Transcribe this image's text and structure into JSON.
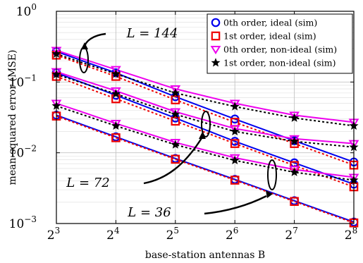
{
  "chart_data": {
    "type": "line",
    "xlabel": "base-station antennas B",
    "ylabel": "mean-squared error (MSE)",
    "x_scale": "log2",
    "y_scale": "log10",
    "xlim": [
      8,
      256
    ],
    "ylim": [
      0.001,
      1
    ],
    "grid": true,
    "legend_position": "top-right",
    "x": [
      8,
      16,
      32,
      64,
      128,
      256
    ],
    "x_ticks": [
      {
        "base": "2",
        "exp": "3"
      },
      {
        "base": "2",
        "exp": "4"
      },
      {
        "base": "2",
        "exp": "5"
      },
      {
        "base": "2",
        "exp": "6"
      },
      {
        "base": "2",
        "exp": "7"
      },
      {
        "base": "2",
        "exp": "8"
      }
    ],
    "y_ticks": [
      {
        "base": "10",
        "exp": "0"
      },
      {
        "base": "10",
        "exp": "−1"
      },
      {
        "base": "10",
        "exp": "−2"
      },
      {
        "base": "10",
        "exp": "−3"
      }
    ],
    "legend": [
      {
        "label": "0th order, ideal (sim)",
        "color": "#0000ee",
        "marker": "circle",
        "dashed": false
      },
      {
        "label": "1st order, ideal (sim)",
        "color": "#ee0000",
        "marker": "square",
        "dashed": true
      },
      {
        "label": "0th order, non-ideal (sim)",
        "color": "#ee00ee",
        "marker": "triangle-down",
        "dashed": false
      },
      {
        "label": "1st order, non-ideal (sim)",
        "color": "#000000",
        "marker": "star",
        "dashed": true
      }
    ],
    "series": [
      {
        "name": "0th order, ideal (sim)",
        "group": "L = 144",
        "values": [
          0.27,
          0.135,
          0.062,
          0.03,
          0.0148,
          0.0074
        ]
      },
      {
        "name": "1st order, ideal (sim)",
        "group": "L = 144",
        "values": [
          0.24,
          0.12,
          0.056,
          0.027,
          0.0135,
          0.0067
        ]
      },
      {
        "name": "0th order, non-ideal (sim)",
        "group": "L = 144",
        "values": [
          0.28,
          0.15,
          0.08,
          0.05,
          0.034,
          0.027
        ]
      },
      {
        "name": "1st order, non-ideal (sim)",
        "group": "L = 144",
        "values": [
          0.25,
          0.13,
          0.07,
          0.045,
          0.031,
          0.024
        ]
      },
      {
        "name": "0th order, ideal (sim)",
        "group": "L = 72",
        "values": [
          0.135,
          0.065,
          0.031,
          0.0145,
          0.0072,
          0.0036
        ]
      },
      {
        "name": "1st order, ideal (sim)",
        "group": "L = 72",
        "values": [
          0.12,
          0.058,
          0.028,
          0.0135,
          0.0066,
          0.0033
        ]
      },
      {
        "name": "0th order, non-ideal (sim)",
        "group": "L = 72",
        "values": [
          0.14,
          0.075,
          0.038,
          0.022,
          0.0158,
          0.0135
        ]
      },
      {
        "name": "1st order, non-ideal (sim)",
        "group": "L = 72",
        "values": [
          0.128,
          0.068,
          0.035,
          0.02,
          0.0145,
          0.012
        ]
      },
      {
        "name": "0th order, ideal (sim)",
        "group": "L = 36",
        "values": [
          0.034,
          0.0168,
          0.0083,
          0.0042,
          0.0021,
          0.00105
        ]
      },
      {
        "name": "1st order, ideal (sim)",
        "group": "L = 36",
        "values": [
          0.033,
          0.0163,
          0.0081,
          0.0041,
          0.00205,
          0.00102
        ]
      },
      {
        "name": "0th order, non-ideal (sim)",
        "group": "L = 36",
        "values": [
          0.05,
          0.026,
          0.014,
          0.0085,
          0.0058,
          0.0045
        ]
      },
      {
        "name": "1st order, non-ideal (sim)",
        "group": "L = 36",
        "values": [
          0.046,
          0.024,
          0.013,
          0.0078,
          0.0053,
          0.0041
        ]
      }
    ],
    "annotations": [
      {
        "text": "L = 144",
        "group": "L = 144"
      },
      {
        "text": "L = 72",
        "group": "L = 72"
      },
      {
        "text": "L = 36",
        "group": "L = 36"
      }
    ]
  }
}
